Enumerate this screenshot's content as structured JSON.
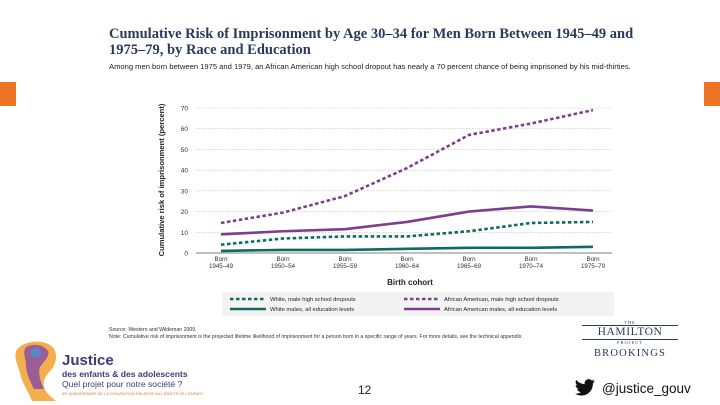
{
  "slide": {
    "title": "Cumulative Risk of Imprisonment by Age 30–34 for Men Born Between 1945–49 and 1975–79, by Race and Education",
    "subtitle": "Among men born between 1975 and 1979, an African American high school dropout has nearly a 70 percent chance of being imprisoned by his mid-thirties.",
    "source_line1": "Source: Western and Wildeman 2009.",
    "source_line2": "Note: Cumulative risk of imprisonment is the projected lifetime likelihood of imprisonment for a person born in a specific range of years. For more details, see the technical appendix.",
    "page_number": "12",
    "twitter_handle": "@justice_gouv"
  },
  "branding": {
    "hamilton_the": "THE",
    "hamilton_name": "HAMILTON",
    "hamilton_project": "PROJECT",
    "brookings": "BROOKINGS",
    "logo_title": "Justice",
    "logo_sub1": "des enfants & des adolescents",
    "logo_sub2": "Quel projet pour notre société ?",
    "logo_tiny": "30ᵉ ANNIVERSAIRE DE LA CONVENTION RELATIVE AUX DROITS DE L'ENFANT"
  },
  "colors": {
    "accent_orange": "#ec7424",
    "teal": "#0f6a62",
    "purple": "#7d3e8e",
    "brand_navy": "#2a3a5c"
  },
  "chart_data": {
    "type": "line",
    "title": "Cumulative Risk of Imprisonment by Age 30–34 for Men Born Between 1945–49 and 1975–79, by Race and Education",
    "xlabel": "Birth cohort",
    "ylabel": "Cumulative risk of imprisonment (percent)",
    "ylim": [
      0,
      70
    ],
    "yticks": [
      0,
      10,
      20,
      30,
      40,
      50,
      60,
      70
    ],
    "categories": [
      {
        "line1": "Born",
        "line2": "1945–49"
      },
      {
        "line1": "Born",
        "line2": "1950–54"
      },
      {
        "line1": "Born",
        "line2": "1955–59"
      },
      {
        "line1": "Born",
        "line2": "1960–64"
      },
      {
        "line1": "Born",
        "line2": "1965–69"
      },
      {
        "line1": "Born",
        "line2": "1970–74"
      },
      {
        "line1": "Born",
        "line2": "1975–79"
      }
    ],
    "series": [
      {
        "name": "White, male high school dropouts",
        "color": "#0f6a62",
        "dashed": true,
        "values": [
          4,
          7,
          8,
          8,
          10.5,
          14.5,
          15
        ]
      },
      {
        "name": "White males, all education levels",
        "color": "#0f6a62",
        "dashed": false,
        "values": [
          1,
          1.5,
          1.5,
          2,
          2.5,
          2.5,
          3
        ]
      },
      {
        "name": "African American, male high school dropouts",
        "color": "#7d3e8e",
        "dashed": true,
        "values": [
          14.5,
          19.5,
          27.5,
          41,
          57,
          62.5,
          69
        ]
      },
      {
        "name": "African American males, all education levels",
        "color": "#7d3e8e",
        "dashed": false,
        "values": [
          9,
          10.5,
          11.5,
          15,
          20,
          22.5,
          20.5
        ]
      }
    ],
    "legend_position": "bottom"
  }
}
